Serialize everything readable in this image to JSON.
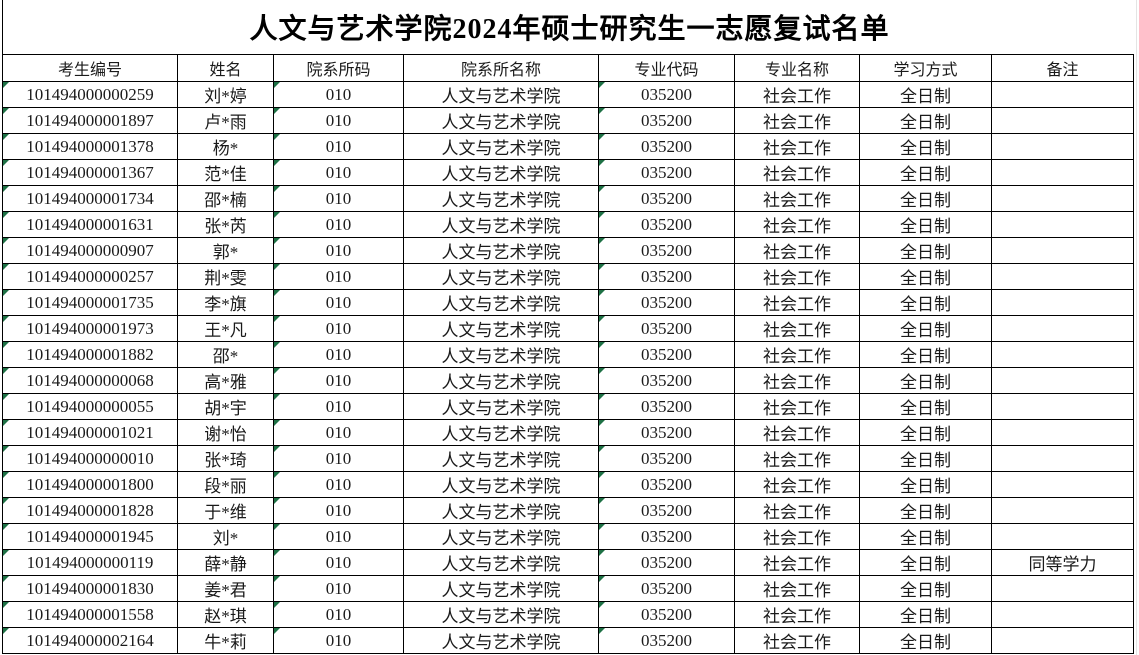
{
  "title": "人文与艺术学院2024年硕士研究生一志愿复试名单",
  "colors": {
    "indicator_green": "#1e7145",
    "border": "#000000",
    "text": "#1a1a1a"
  },
  "table": {
    "columns": [
      {
        "key": "exam_id",
        "label": "考生编号"
      },
      {
        "key": "name",
        "label": "姓名"
      },
      {
        "key": "dept_code",
        "label": "院系所码"
      },
      {
        "key": "dept_name",
        "label": "院系所名称"
      },
      {
        "key": "major_code",
        "label": "专业代码"
      },
      {
        "key": "major_name",
        "label": "专业名称"
      },
      {
        "key": "study_mode",
        "label": "学习方式"
      },
      {
        "key": "remark",
        "label": "备注"
      }
    ],
    "error_indicator_columns": [
      "exam_id",
      "dept_code",
      "major_code"
    ],
    "rows": [
      {
        "exam_id": "101494000000259",
        "name": "刘*婷",
        "dept_code": "010",
        "dept_name": "人文与艺术学院",
        "major_code": "035200",
        "major_name": "社会工作",
        "study_mode": "全日制",
        "remark": ""
      },
      {
        "exam_id": "101494000001897",
        "name": "卢*雨",
        "dept_code": "010",
        "dept_name": "人文与艺术学院",
        "major_code": "035200",
        "major_name": "社会工作",
        "study_mode": "全日制",
        "remark": ""
      },
      {
        "exam_id": "101494000001378",
        "name": "杨*",
        "dept_code": "010",
        "dept_name": "人文与艺术学院",
        "major_code": "035200",
        "major_name": "社会工作",
        "study_mode": "全日制",
        "remark": ""
      },
      {
        "exam_id": "101494000001367",
        "name": "范*佳",
        "dept_code": "010",
        "dept_name": "人文与艺术学院",
        "major_code": "035200",
        "major_name": "社会工作",
        "study_mode": "全日制",
        "remark": ""
      },
      {
        "exam_id": "101494000001734",
        "name": "邵*楠",
        "dept_code": "010",
        "dept_name": "人文与艺术学院",
        "major_code": "035200",
        "major_name": "社会工作",
        "study_mode": "全日制",
        "remark": ""
      },
      {
        "exam_id": "101494000001631",
        "name": "张*芮",
        "dept_code": "010",
        "dept_name": "人文与艺术学院",
        "major_code": "035200",
        "major_name": "社会工作",
        "study_mode": "全日制",
        "remark": ""
      },
      {
        "exam_id": "101494000000907",
        "name": "郭*",
        "dept_code": "010",
        "dept_name": "人文与艺术学院",
        "major_code": "035200",
        "major_name": "社会工作",
        "study_mode": "全日制",
        "remark": ""
      },
      {
        "exam_id": "101494000000257",
        "name": "荆*雯",
        "dept_code": "010",
        "dept_name": "人文与艺术学院",
        "major_code": "035200",
        "major_name": "社会工作",
        "study_mode": "全日制",
        "remark": ""
      },
      {
        "exam_id": "101494000001735",
        "name": "李*旗",
        "dept_code": "010",
        "dept_name": "人文与艺术学院",
        "major_code": "035200",
        "major_name": "社会工作",
        "study_mode": "全日制",
        "remark": ""
      },
      {
        "exam_id": "101494000001973",
        "name": "王*凡",
        "dept_code": "010",
        "dept_name": "人文与艺术学院",
        "major_code": "035200",
        "major_name": "社会工作",
        "study_mode": "全日制",
        "remark": ""
      },
      {
        "exam_id": "101494000001882",
        "name": "邵*",
        "dept_code": "010",
        "dept_name": "人文与艺术学院",
        "major_code": "035200",
        "major_name": "社会工作",
        "study_mode": "全日制",
        "remark": ""
      },
      {
        "exam_id": "101494000000068",
        "name": "高*雅",
        "dept_code": "010",
        "dept_name": "人文与艺术学院",
        "major_code": "035200",
        "major_name": "社会工作",
        "study_mode": "全日制",
        "remark": ""
      },
      {
        "exam_id": "101494000000055",
        "name": "胡*宇",
        "dept_code": "010",
        "dept_name": "人文与艺术学院",
        "major_code": "035200",
        "major_name": "社会工作",
        "study_mode": "全日制",
        "remark": ""
      },
      {
        "exam_id": "101494000001021",
        "name": "谢*怡",
        "dept_code": "010",
        "dept_name": "人文与艺术学院",
        "major_code": "035200",
        "major_name": "社会工作",
        "study_mode": "全日制",
        "remark": ""
      },
      {
        "exam_id": "101494000000010",
        "name": "张*琦",
        "dept_code": "010",
        "dept_name": "人文与艺术学院",
        "major_code": "035200",
        "major_name": "社会工作",
        "study_mode": "全日制",
        "remark": ""
      },
      {
        "exam_id": "101494000001800",
        "name": "段*丽",
        "dept_code": "010",
        "dept_name": "人文与艺术学院",
        "major_code": "035200",
        "major_name": "社会工作",
        "study_mode": "全日制",
        "remark": ""
      },
      {
        "exam_id": "101494000001828",
        "name": "于*维",
        "dept_code": "010",
        "dept_name": "人文与艺术学院",
        "major_code": "035200",
        "major_name": "社会工作",
        "study_mode": "全日制",
        "remark": ""
      },
      {
        "exam_id": "101494000001945",
        "name": "刘*",
        "dept_code": "010",
        "dept_name": "人文与艺术学院",
        "major_code": "035200",
        "major_name": "社会工作",
        "study_mode": "全日制",
        "remark": ""
      },
      {
        "exam_id": "101494000000119",
        "name": "薛*静",
        "dept_code": "010",
        "dept_name": "人文与艺术学院",
        "major_code": "035200",
        "major_name": "社会工作",
        "study_mode": "全日制",
        "remark": "同等学力"
      },
      {
        "exam_id": "101494000001830",
        "name": "姜*君",
        "dept_code": "010",
        "dept_name": "人文与艺术学院",
        "major_code": "035200",
        "major_name": "社会工作",
        "study_mode": "全日制",
        "remark": ""
      },
      {
        "exam_id": "101494000001558",
        "name": "赵*琪",
        "dept_code": "010",
        "dept_name": "人文与艺术学院",
        "major_code": "035200",
        "major_name": "社会工作",
        "study_mode": "全日制",
        "remark": ""
      },
      {
        "exam_id": "101494000002164",
        "name": "牛*莉",
        "dept_code": "010",
        "dept_name": "人文与艺术学院",
        "major_code": "035200",
        "major_name": "社会工作",
        "study_mode": "全日制",
        "remark": ""
      }
    ]
  }
}
